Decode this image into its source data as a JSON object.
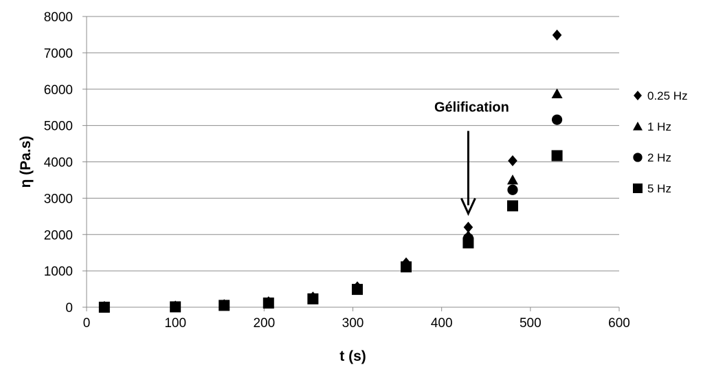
{
  "chart_data": {
    "type": "scatter",
    "title": "",
    "xlabel": "t (s)",
    "ylabel": "η (Pa.s)",
    "xlim": [
      0,
      600
    ],
    "ylim": [
      0,
      8000
    ],
    "xticks": [
      0,
      100,
      200,
      300,
      400,
      500,
      600
    ],
    "yticks": [
      0,
      1000,
      2000,
      3000,
      4000,
      5000,
      6000,
      7000,
      8000
    ],
    "grid": "horizontal",
    "legend_position": "right",
    "marker_color": "#000000",
    "series": [
      {
        "name": "0.25 Hz",
        "marker": "diamond",
        "x": [
          20,
          100,
          155,
          205,
          255,
          305,
          360,
          430,
          480,
          530
        ],
        "y": [
          20,
          30,
          70,
          150,
          280,
          560,
          1220,
          2200,
          4030,
          7490
        ]
      },
      {
        "name": "1 Hz",
        "marker": "triangle",
        "x": [
          20,
          100,
          155,
          205,
          255,
          305,
          360,
          430,
          480,
          530
        ],
        "y": [
          15,
          25,
          60,
          130,
          250,
          520,
          1160,
          1980,
          3500,
          5870
        ]
      },
      {
        "name": "2 Hz",
        "marker": "circle",
        "x": [
          20,
          100,
          155,
          205,
          255,
          305,
          360,
          430,
          480,
          530
        ],
        "y": [
          10,
          20,
          55,
          125,
          240,
          510,
          1140,
          1900,
          3230,
          5160
        ]
      },
      {
        "name": "5 Hz",
        "marker": "square",
        "x": [
          20,
          100,
          155,
          205,
          255,
          305,
          360,
          430,
          480,
          530
        ],
        "y": [
          0,
          10,
          50,
          115,
          230,
          490,
          1110,
          1770,
          2790,
          4170
        ]
      }
    ],
    "annotations": [
      {
        "text": "Gélification",
        "arrow_x": 430,
        "arrow_y_from": 4850,
        "arrow_y_to": 2580
      }
    ]
  }
}
